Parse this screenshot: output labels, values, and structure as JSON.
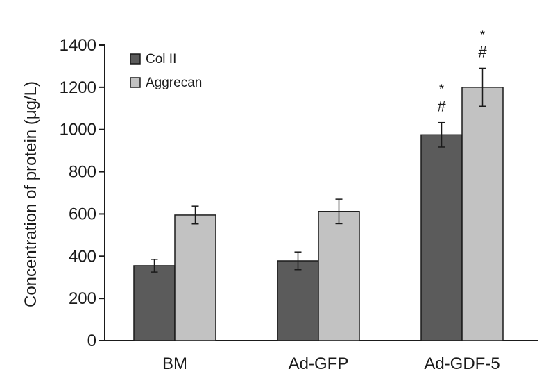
{
  "chart_data": {
    "type": "bar",
    "title": "",
    "xlabel": "",
    "ylabel": "Concentration of protein (μg/L)",
    "ylim": [
      0,
      1400
    ],
    "yticks": [
      0,
      200,
      400,
      600,
      800,
      1000,
      1200,
      1400
    ],
    "categories": [
      "BM",
      "Ad-GFP",
      "Ad-GDF-5"
    ],
    "series": [
      {
        "name": "Col II",
        "color": "#5b5b5b",
        "values": [
          355,
          378,
          975
        ],
        "errors": [
          30,
          42,
          58
        ]
      },
      {
        "name": "Aggrecan",
        "color": "#c2c2c2",
        "values": [
          595,
          612,
          1200
        ],
        "errors": [
          42,
          58,
          90
        ]
      }
    ],
    "legend": "top-left",
    "grid": false,
    "annotations": [
      {
        "category": "Ad-GDF-5",
        "series": "Col II",
        "lines": [
          "*",
          "#"
        ]
      },
      {
        "category": "Ad-GDF-5",
        "series": "Aggrecan",
        "lines": [
          "*",
          "#"
        ]
      }
    ]
  }
}
